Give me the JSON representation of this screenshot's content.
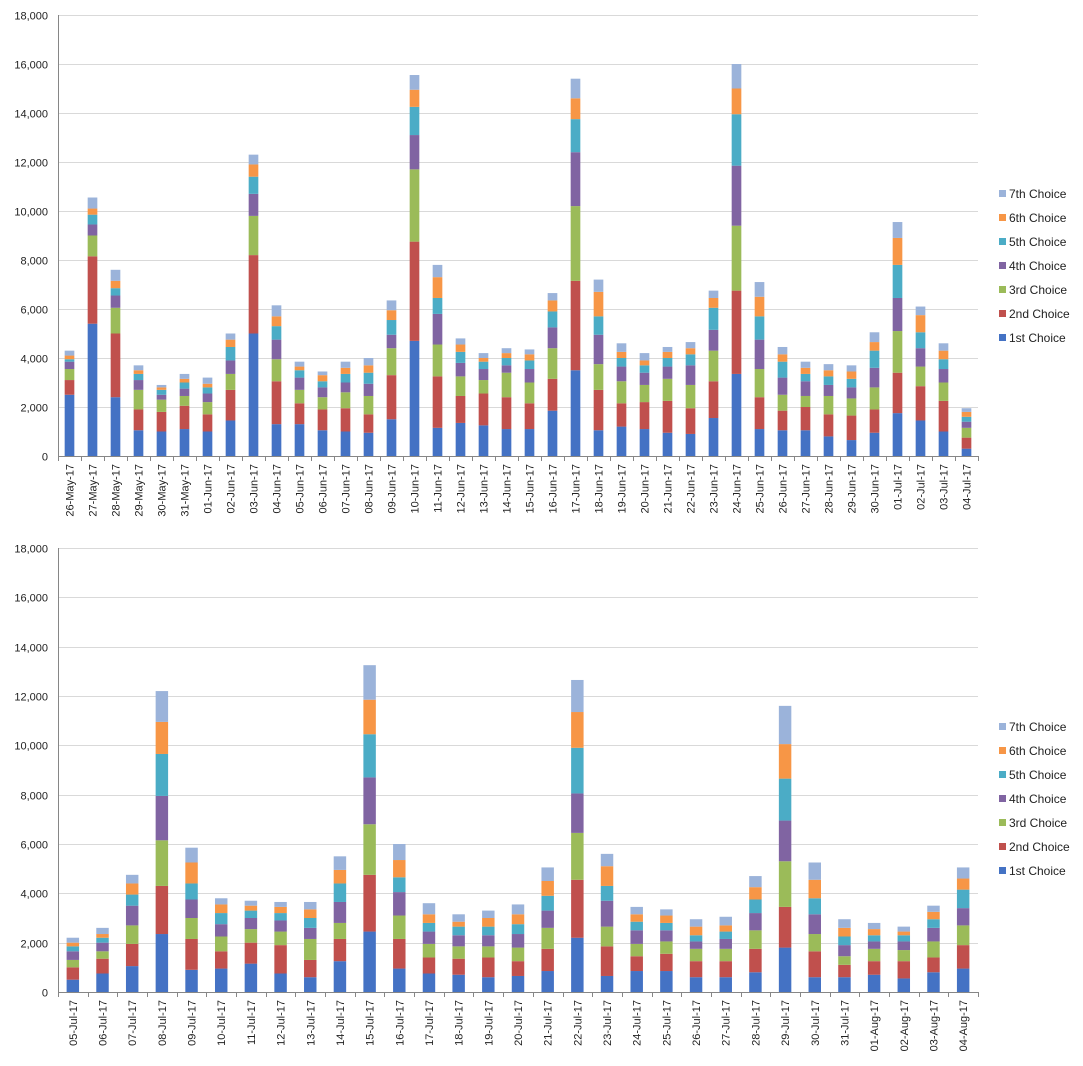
{
  "series_colors": [
    "#4472C4",
    "#C0504D",
    "#9BBB59",
    "#8064A2",
    "#4BACC6",
    "#F79646",
    "#9BB3DA"
  ],
  "chart_data": [
    {
      "type": "bar",
      "stacked": true,
      "title": "",
      "xlabel": "",
      "ylabel": "",
      "ylim": [
        0,
        18000
      ],
      "yticks": [
        0,
        2000,
        4000,
        6000,
        8000,
        10000,
        12000,
        14000,
        16000,
        18000
      ],
      "ytick_labels": [
        "0",
        "2,000",
        "4,000",
        "6,000",
        "8,000",
        "10,000",
        "12,000",
        "14,000",
        "16,000",
        "18,000"
      ],
      "grid": true,
      "legend_position": "right",
      "categories": [
        "26-May-17",
        "27-May-17",
        "28-May-17",
        "29-May-17",
        "30-May-17",
        "31-May-17",
        "01-Jun-17",
        "02-Jun-17",
        "03-Jun-17",
        "04-Jun-17",
        "05-Jun-17",
        "06-Jun-17",
        "07-Jun-17",
        "08-Jun-17",
        "09-Jun-17",
        "10-Jun-17",
        "11-Jun-17",
        "12-Jun-17",
        "13-Jun-17",
        "14-Jun-17",
        "15-Jun-17",
        "16-Jun-17",
        "17-Jun-17",
        "18-Jun-17",
        "19-Jun-17",
        "20-Jun-17",
        "21-Jun-17",
        "22-Jun-17",
        "23-Jun-17",
        "24-Jun-17",
        "25-Jun-17",
        "26-Jun-17",
        "27-Jun-17",
        "28-Jun-17",
        "29-Jun-17",
        "30-Jun-17",
        "01-Jul-17",
        "02-Jul-17",
        "03-Jul-17",
        "04-Jul-17"
      ],
      "series": [
        {
          "name": "1st Choice",
          "values": [
            2500,
            5400,
            2400,
            1050,
            1000,
            1100,
            1000,
            1450,
            5000,
            1300,
            1300,
            1050,
            1000,
            950,
            1500,
            4700,
            1150,
            1350,
            1250,
            1100,
            1100,
            1850,
            3500,
            1050,
            1200,
            1100,
            950,
            900,
            1550,
            3350,
            1100,
            1050,
            1050,
            800,
            650,
            950,
            1750,
            1450,
            1000,
            300
          ]
        },
        {
          "name": "2nd Choice",
          "values": [
            600,
            2750,
            2600,
            850,
            800,
            950,
            700,
            1250,
            3200,
            1750,
            850,
            850,
            950,
            750,
            1800,
            4050,
            2100,
            1100,
            1300,
            1300,
            1050,
            1300,
            3650,
            1650,
            950,
            1100,
            1300,
            1050,
            1500,
            3400,
            1300,
            800,
            950,
            900,
            1000,
            950,
            1650,
            1400,
            1250,
            450
          ]
        },
        {
          "name": "3rd Choice",
          "values": [
            450,
            850,
            1050,
            800,
            500,
            400,
            500,
            650,
            1600,
            900,
            550,
            500,
            650,
            750,
            1100,
            2950,
            1300,
            800,
            550,
            1000,
            850,
            1250,
            3050,
            1050,
            900,
            700,
            900,
            950,
            1250,
            2650,
            1150,
            650,
            450,
            750,
            700,
            900,
            1700,
            800,
            750,
            400
          ]
        },
        {
          "name": "4th Choice",
          "values": [
            300,
            450,
            500,
            400,
            200,
            300,
            350,
            550,
            900,
            800,
            500,
            400,
            400,
            500,
            550,
            1400,
            1250,
            550,
            450,
            300,
            550,
            850,
            2200,
            1200,
            600,
            500,
            500,
            800,
            850,
            2450,
            1200,
            700,
            600,
            450,
            450,
            800,
            1350,
            750,
            550,
            250
          ]
        },
        {
          "name": "5th Choice",
          "values": [
            100,
            400,
            300,
            250,
            200,
            250,
            250,
            550,
            700,
            550,
            300,
            250,
            350,
            450,
            600,
            1150,
            650,
            450,
            300,
            300,
            350,
            650,
            1350,
            750,
            350,
            300,
            350,
            450,
            900,
            2100,
            950,
            650,
            300,
            350,
            350,
            700,
            1350,
            650,
            400,
            200
          ]
        },
        {
          "name": "6th Choice",
          "values": [
            150,
            250,
            300,
            150,
            100,
            150,
            150,
            300,
            500,
            400,
            150,
            250,
            250,
            300,
            400,
            700,
            850,
            300,
            150,
            200,
            250,
            450,
            850,
            1000,
            250,
            200,
            250,
            250,
            400,
            1050,
            800,
            300,
            250,
            250,
            300,
            350,
            1100,
            700,
            350,
            200
          ]
        },
        {
          "name": "7th Choice",
          "values": [
            200,
            450,
            450,
            200,
            100,
            200,
            250,
            250,
            400,
            450,
            200,
            150,
            250,
            300,
            400,
            600,
            500,
            250,
            200,
            200,
            200,
            300,
            800,
            500,
            350,
            300,
            200,
            250,
            300,
            1000,
            600,
            300,
            250,
            250,
            250,
            400,
            650,
            350,
            300,
            150
          ]
        }
      ]
    },
    {
      "type": "bar",
      "stacked": true,
      "title": "",
      "xlabel": "",
      "ylabel": "",
      "ylim": [
        0,
        18000
      ],
      "yticks": [
        0,
        2000,
        4000,
        6000,
        8000,
        10000,
        12000,
        14000,
        16000,
        18000
      ],
      "ytick_labels": [
        "0",
        "2,000",
        "4,000",
        "6,000",
        "8,000",
        "10,000",
        "12,000",
        "14,000",
        "16,000",
        "18,000"
      ],
      "grid": true,
      "legend_position": "right",
      "categories": [
        "05-Jul-17",
        "06-Jul-17",
        "07-Jul-17",
        "08-Jul-17",
        "09-Jul-17",
        "10-Jul-17",
        "11-Jul-17",
        "12-Jul-17",
        "13-Jul-17",
        "14-Jul-17",
        "15-Jul-17",
        "16-Jul-17",
        "17-Jul-17",
        "18-Jul-17",
        "19-Jul-17",
        "20-Jul-17",
        "21-Jul-17",
        "22-Jul-17",
        "23-Jul-17",
        "24-Jul-17",
        "25-Jul-17",
        "26-Jul-17",
        "27-Jul-17",
        "28-Jul-17",
        "29-Jul-17",
        "30-Jul-17",
        "31-Jul-17",
        "01-Aug-17",
        "02-Aug-17",
        "03-Aug-17",
        "04-Aug-17"
      ],
      "series": [
        {
          "name": "1st Choice",
          "values": [
            500,
            750,
            1050,
            2350,
            900,
            950,
            1150,
            750,
            600,
            1250,
            2450,
            950,
            750,
            700,
            600,
            650,
            850,
            2200,
            650,
            850,
            850,
            600,
            600,
            800,
            1800,
            600,
            600,
            700,
            550,
            800,
            950
          ]
        },
        {
          "name": "2nd Choice",
          "values": [
            500,
            600,
            900,
            1950,
            1250,
            700,
            850,
            1150,
            700,
            900,
            2300,
            1200,
            650,
            650,
            800,
            600,
            900,
            2350,
            1200,
            600,
            700,
            650,
            650,
            950,
            1650,
            1050,
            500,
            550,
            700,
            600,
            950
          ]
        },
        {
          "name": "3rd Choice",
          "values": [
            300,
            300,
            750,
            1850,
            850,
            600,
            550,
            550,
            850,
            650,
            2050,
            950,
            550,
            500,
            450,
            550,
            850,
            1900,
            800,
            500,
            500,
            500,
            500,
            750,
            1850,
            700,
            350,
            500,
            450,
            650,
            800
          ]
        },
        {
          "name": "4th Choice",
          "values": [
            350,
            350,
            800,
            1800,
            750,
            500,
            450,
            450,
            450,
            850,
            1900,
            950,
            500,
            450,
            450,
            550,
            700,
            1600,
            1050,
            550,
            450,
            300,
            400,
            700,
            1650,
            800,
            450,
            300,
            350,
            550,
            700
          ]
        },
        {
          "name": "5th Choice",
          "values": [
            200,
            200,
            450,
            1700,
            650,
            450,
            300,
            300,
            400,
            750,
            1750,
            600,
            350,
            350,
            350,
            400,
            600,
            1850,
            600,
            350,
            300,
            250,
            300,
            550,
            1700,
            650,
            350,
            250,
            250,
            350,
            750
          ]
        },
        {
          "name": "6th Choice",
          "values": [
            150,
            150,
            450,
            1300,
            850,
            350,
            200,
            250,
            350,
            550,
            1400,
            700,
            350,
            200,
            350,
            400,
            600,
            1450,
            800,
            300,
            300,
            350,
            250,
            500,
            1400,
            750,
            350,
            250,
            150,
            300,
            450
          ]
        },
        {
          "name": "7th Choice",
          "values": [
            200,
            250,
            350,
            1250,
            600,
            250,
            200,
            200,
            300,
            550,
            1400,
            650,
            450,
            300,
            300,
            400,
            550,
            1300,
            500,
            300,
            250,
            300,
            350,
            450,
            1550,
            700,
            350,
            250,
            200,
            250,
            450
          ]
        }
      ]
    }
  ]
}
